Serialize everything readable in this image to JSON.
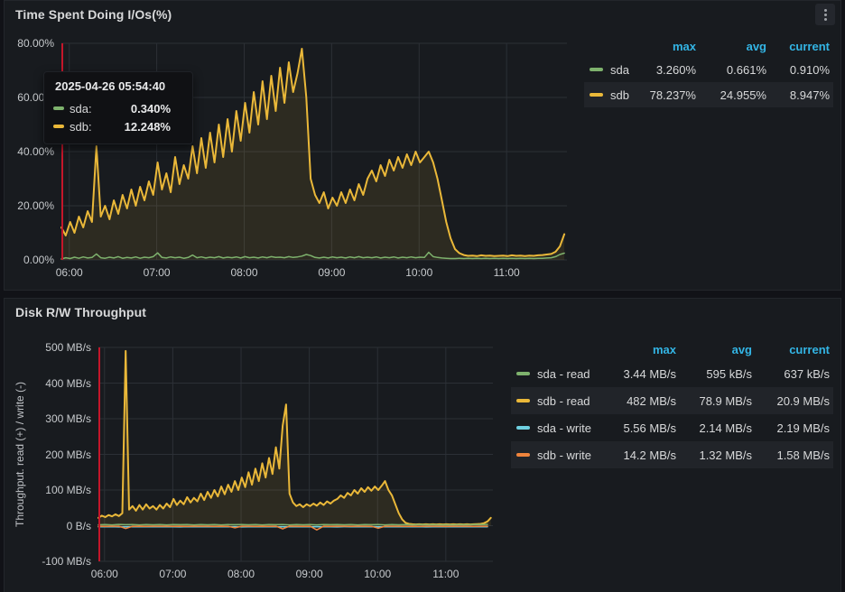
{
  "colors": {
    "legend_header": "#33b5e5",
    "crosshair": "#c4162a",
    "grid": "#2c3036",
    "tick_text": "#c7cacd",
    "green": "#7eb26d",
    "yellow": "#eab839",
    "cyan": "#6ed0e0",
    "orange": "#ef843c"
  },
  "panels": [
    {
      "title": "Time Spent Doing I/Os(%)",
      "menu_icon": "kebab-menu-icon",
      "legend": {
        "headers": [
          "max",
          "avg",
          "current"
        ],
        "rows": [
          {
            "name": "sda",
            "color": "#7eb26d",
            "max": "3.260%",
            "avg": "0.661%",
            "current": "0.910%"
          },
          {
            "name": "sdb",
            "color": "#eab839",
            "max": "78.237%",
            "avg": "24.955%",
            "current": "8.947%"
          }
        ]
      },
      "tooltip": {
        "timestamp": "2025-04-26 05:54:40",
        "rows": [
          {
            "name": "sda:",
            "value": "0.340%",
            "color": "#7eb26d"
          },
          {
            "name": "sdb:",
            "value": "12.248%",
            "color": "#eab839"
          }
        ]
      }
    },
    {
      "title": "Disk R/W Throughput",
      "y_axis_label": "Throughput. read (+) / write (-)",
      "legend": {
        "headers": [
          "max",
          "avg",
          "current"
        ],
        "rows": [
          {
            "name": "sda - read",
            "color": "#7eb26d",
            "max": "3.44 MB/s",
            "avg": "595 kB/s",
            "current": "637 kB/s"
          },
          {
            "name": "sdb - read",
            "color": "#eab839",
            "max": "482 MB/s",
            "avg": "78.9 MB/s",
            "current": "20.9 MB/s"
          },
          {
            "name": "sda - write",
            "color": "#6ed0e0",
            "max": "5.56 MB/s",
            "avg": "2.14 MB/s",
            "current": "2.19 MB/s"
          },
          {
            "name": "sdb - write",
            "color": "#ef843c",
            "max": "14.2 MB/s",
            "avg": "1.32 MB/s",
            "current": "1.58 MB/s"
          }
        ]
      }
    }
  ],
  "chart_data": [
    {
      "type": "line",
      "title": "Time Spent Doing I/Os(%)",
      "x_unit": "time_of_day_hours",
      "xlim": [
        5.91,
        11.69
      ],
      "ylim": [
        0,
        80
      ],
      "grid": true,
      "legend_position": "right-table",
      "cursor_x": 5.91,
      "x_ticks": [
        {
          "value": 6,
          "label": "06:00"
        },
        {
          "value": 7,
          "label": "07:00"
        },
        {
          "value": 8,
          "label": "08:00"
        },
        {
          "value": 9,
          "label": "09:00"
        },
        {
          "value": 10,
          "label": "10:00"
        },
        {
          "value": 11,
          "label": "11:00"
        }
      ],
      "y_ticks": [
        {
          "value": 0,
          "label": "0.00%"
        },
        {
          "value": 20,
          "label": "20.00%"
        },
        {
          "value": 40,
          "label": "40.00%"
        },
        {
          "value": 60,
          "label": "60.00%"
        },
        {
          "value": 80,
          "label": "80.00%"
        }
      ],
      "series": [
        {
          "name": "sdb",
          "color": "#eab839",
          "line_width": 2,
          "fill": true,
          "fill_opacity": 0.1,
          "x_start": 5.91,
          "x_step": 0.05,
          "values": [
            12,
            9,
            14,
            10,
            16,
            12,
            18,
            14,
            42,
            16,
            20,
            15,
            22,
            17,
            24,
            19,
            26,
            20,
            27,
            22,
            29,
            24,
            36,
            26,
            32,
            25,
            38,
            28,
            35,
            30,
            42,
            32,
            45,
            34,
            47,
            36,
            50,
            38,
            52,
            40,
            55,
            44,
            58,
            47,
            62,
            50,
            66,
            52,
            68,
            55,
            71,
            58,
            73,
            62,
            69,
            78,
            60,
            30,
            24,
            21,
            25,
            19,
            23,
            20,
            25,
            21,
            26,
            22,
            28,
            24,
            30,
            33,
            29,
            35,
            31,
            37,
            33,
            38,
            34,
            39,
            35,
            40,
            36,
            38,
            40,
            36,
            30,
            22,
            14,
            8,
            4,
            2.5,
            1.8,
            1.5,
            1.6,
            1.4,
            1.7,
            1.5,
            1.6,
            1.4,
            1.5,
            1.6,
            1.4,
            1.7,
            1.5,
            1.6,
            1.4,
            1.6,
            1.5,
            1.7,
            1.8,
            2,
            2.2,
            3,
            5,
            9.5
          ]
        },
        {
          "name": "sda",
          "color": "#7eb26d",
          "line_width": 1.5,
          "fill": false,
          "x_start": 5.91,
          "x_step": 0.05,
          "values": [
            0.34,
            0.8,
            0.5,
            1,
            0.6,
            1.1,
            0.7,
            0.9,
            2.2,
            0.8,
            0.6,
            1,
            0.7,
            1.2,
            0.6,
            0.9,
            0.7,
            1.1,
            0.6,
            1,
            0.8,
            1.2,
            2.6,
            0.9,
            0.7,
            1.1,
            0.8,
            1,
            0.6,
            0.9,
            1.8,
            0.8,
            1.1,
            0.7,
            1,
            0.8,
            1.2,
            0.7,
            1,
            0.8,
            1.1,
            0.7,
            1.2,
            0.8,
            1,
            0.7,
            1.1,
            0.8,
            1.2,
            0.9,
            1,
            0.8,
            1.2,
            0.9,
            1.1,
            1.4,
            2,
            1.6,
            0.9,
            0.7,
            1,
            0.7,
            1.1,
            0.8,
            1,
            0.7,
            1.1,
            0.8,
            1.2,
            0.8,
            1,
            0.8,
            1.1,
            0.7,
            1,
            0.8,
            1.1,
            0.7,
            1,
            0.8,
            1.1,
            0.8,
            1,
            0.9,
            2.8,
            1.2,
            0.9,
            0.7,
            0.6,
            0.5,
            0.5,
            0.6,
            0.5,
            0.6,
            0.5,
            0.6,
            0.5,
            0.6,
            0.5,
            0.6,
            0.5,
            0.6,
            0.5,
            0.6,
            0.5,
            0.6,
            0.5,
            0.6,
            0.5,
            0.6,
            0.6,
            0.7,
            0.8,
            1.2,
            2,
            2.5
          ]
        }
      ]
    },
    {
      "type": "line",
      "title": "Disk R/W Throughput",
      "x_unit": "time_of_day_hours",
      "y_unit": "MB/s",
      "ylabel": "Throughput. read (+) / write (-)",
      "xlim": [
        5.91,
        11.69
      ],
      "ylim": [
        -100,
        500
      ],
      "grid": true,
      "legend_position": "right-table",
      "cursor_x": 5.91,
      "x_ticks": [
        {
          "value": 6,
          "label": "06:00"
        },
        {
          "value": 7,
          "label": "07:00"
        },
        {
          "value": 8,
          "label": "08:00"
        },
        {
          "value": 9,
          "label": "09:00"
        },
        {
          "value": 10,
          "label": "10:00"
        },
        {
          "value": 11,
          "label": "11:00"
        }
      ],
      "y_ticks": [
        {
          "value": -100,
          "label": "-100 MB/s"
        },
        {
          "value": 0,
          "label": "0 B/s"
        },
        {
          "value": 100,
          "label": "100 MB/s"
        },
        {
          "value": 200,
          "label": "200 MB/s"
        },
        {
          "value": 300,
          "label": "300 MB/s"
        },
        {
          "value": 400,
          "label": "400 MB/s"
        },
        {
          "value": 500,
          "label": "500 MB/s"
        }
      ],
      "series": [
        {
          "name": "sdb - read",
          "color": "#eab839",
          "line_width": 2,
          "fill": true,
          "fill_opacity": 0.1,
          "x_start": 5.91,
          "x_step": 0.05,
          "values": [
            22,
            28,
            24,
            30,
            26,
            32,
            27,
            35,
            490,
            45,
            55,
            42,
            58,
            45,
            60,
            48,
            55,
            45,
            58,
            48,
            62,
            52,
            75,
            58,
            70,
            60,
            80,
            65,
            78,
            68,
            90,
            72,
            95,
            78,
            100,
            82,
            110,
            88,
            115,
            95,
            125,
            100,
            135,
            108,
            150,
            115,
            160,
            125,
            175,
            135,
            190,
            145,
            220,
            160,
            280,
            340,
            90,
            65,
            55,
            60,
            52,
            60,
            55,
            62,
            56,
            65,
            58,
            68,
            62,
            70,
            75,
            85,
            78,
            92,
            85,
            100,
            90,
            105,
            95,
            108,
            98,
            110,
            100,
            112,
            125,
            100,
            85,
            60,
            35,
            18,
            8,
            5,
            4,
            3.5,
            4,
            3.5,
            4,
            3.5,
            4,
            3.5,
            4,
            3.5,
            4,
            3.5,
            4,
            3.5,
            4,
            3.5,
            4,
            3.5,
            4,
            4.5,
            5,
            7,
            12,
            22
          ]
        },
        {
          "name": "sda - read",
          "color": "#7eb26d",
          "line_width": 1.5,
          "fill": false,
          "x_start": 5.91,
          "x_step": 0.1,
          "values": [
            2.5,
            3.2,
            2.2,
            3.5,
            2.8,
            3,
            2.4,
            3.4,
            2.6,
            3.1,
            2.3,
            3.3,
            2.7,
            3,
            2.4,
            3.2,
            2.6,
            3.4,
            2.2,
            3,
            2.8,
            3.3,
            2.5,
            3.1,
            2.3,
            3.2,
            2.7,
            3.4,
            2.4,
            3,
            2.6,
            3.2,
            2.2,
            3.3,
            2.8,
            3.1,
            2.5,
            3.4,
            2.3,
            3,
            2.7,
            3.2,
            2.4,
            3.3,
            2.6,
            3.1,
            2.2,
            3,
            2.5,
            2.8,
            2.3,
            2.6,
            2.4,
            2.7,
            2.5,
            3,
            3.2,
            3.5
          ]
        },
        {
          "name": "sda - write",
          "color": "#6ed0e0",
          "line_width": 1.5,
          "fill": false,
          "x_start": 5.91,
          "x_step": 0.1,
          "values": [
            -3,
            -3.4,
            -2.8,
            -3.5,
            -3.1,
            -2.9,
            -3.3,
            -3,
            -3.4,
            -2.9,
            -3.2,
            -3,
            -3.5,
            -2.8,
            -3.3,
            -3.1,
            -2.9,
            -3.4,
            -3,
            -3.2,
            -2.8,
            -3.5,
            -3.1,
            -3,
            -3.3,
            -2.9,
            -3.4,
            -3,
            -3.2,
            -2.8,
            -3.4,
            -3.1,
            -2.9,
            -3.3,
            -3,
            -3.5,
            -2.8,
            -3.2,
            -3,
            -3.4,
            -2.9,
            -3.3,
            -3.1,
            -2.8,
            -3.4,
            -3,
            -3.2,
            -2.9,
            -3.5,
            -3,
            -3.3,
            -2.8,
            -3.1,
            -3,
            -3.2,
            -2.9,
            -3.3,
            -3
          ]
        },
        {
          "name": "sdb - write",
          "color": "#ef843c",
          "line_width": 1.5,
          "fill": false,
          "x_start": 5.91,
          "x_step": 0.1,
          "values": [
            -1.5,
            -1.8,
            -1.4,
            -1.6,
            -8,
            -1.7,
            -1.5,
            -1.8,
            -1.4,
            -1.6,
            -1.5,
            -1.7,
            -1.4,
            -1.8,
            -1.5,
            -1.6,
            -1.4,
            -1.7,
            -1.5,
            -1.8,
            -6,
            -1.6,
            -1.5,
            -1.7,
            -1.4,
            -1.8,
            -1.5,
            -9,
            -1.6,
            -1.4,
            -1.7,
            -1.5,
            -12,
            -1.6,
            -1.8,
            -1.4,
            -1.5,
            -1.7,
            -1.6,
            -1.4,
            -1.8,
            -7,
            -1.5,
            -1.6,
            -1.4,
            -1.7,
            -1.5,
            -1.8,
            -1.4,
            -1.6,
            -1.5,
            -1.7,
            -1.4,
            -1.6,
            -1.5,
            -1.8,
            -1.4,
            -1.6
          ]
        }
      ]
    }
  ]
}
